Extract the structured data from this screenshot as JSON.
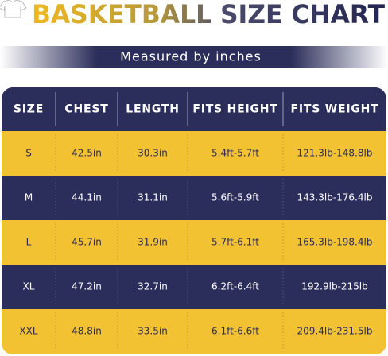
{
  "header": {
    "title": "BASKETBALL SIZE CHART",
    "subtitle": "Measured by inches"
  },
  "table": {
    "columns": [
      "SIZE",
      "CHEST",
      "LENGTH",
      "FITS HEIGHT",
      "FITS WEIGHT"
    ],
    "rows": [
      [
        "S",
        "42.5in",
        "30.3in",
        "5.4ft-5.7ft",
        "121.3lb-148.8lb"
      ],
      [
        "M",
        "44.1in",
        "31.1in",
        "5.6ft-5.9ft",
        "143.3lb-176.4lb"
      ],
      [
        "L",
        "45.7in",
        "31.9in",
        "5.7ft-6.1ft",
        "165.3lb-198.4lb"
      ],
      [
        "XL",
        "47.2in",
        "32.7in",
        "6.2ft-6.4ft",
        "192.9lb-215lb"
      ],
      [
        "XXL",
        "48.8in",
        "33.5in",
        "6.1ft-6.6ft",
        "209.4lb-231.5lb"
      ]
    ]
  }
}
